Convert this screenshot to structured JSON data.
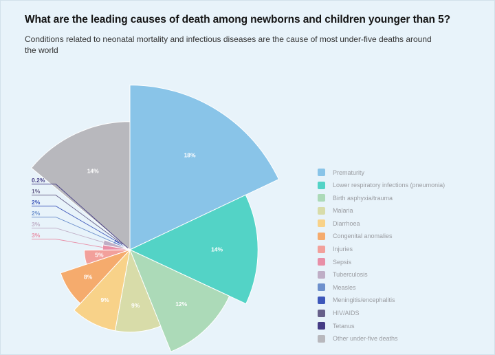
{
  "header": {
    "title": "What are the leading causes of death among newborns and children younger than 5?",
    "subtitle": "Conditions related to neonatal mortality and infectious diseases are the cause of most under-five deaths around the world"
  },
  "chart_data": {
    "type": "pie",
    "variant": "polar-area-rose",
    "unit": "%",
    "title": "What are the leading causes of death among newborns and children younger than 5?",
    "legend_position": "right",
    "categories": [
      "Prematurity",
      "Lower respiratory infections (pneumonia)",
      "Birth asphyxia/trauma",
      "Malaria",
      "Diarrhoea",
      "Congenital anomalies",
      "Injuries",
      "Sepsis",
      "Tuberculosis",
      "Measles",
      "Meningitis/encephalitis",
      "HIV/AIDS",
      "Tetanus",
      "Other under-five deaths"
    ],
    "values": [
      18,
      14,
      12,
      9,
      9,
      8,
      5,
      3,
      3,
      2,
      2,
      1,
      0.2,
      14
    ],
    "labels": [
      "18%",
      "14%",
      "12%",
      "9%",
      "9%",
      "8%",
      "5%",
      "3%",
      "3%",
      "2%",
      "2%",
      "1%",
      "0.2%",
      "14%"
    ],
    "colors": [
      "#89C4E8",
      "#53D3C6",
      "#ACDAB8",
      "#D8DCA9",
      "#F8D289",
      "#F5AB6D",
      "#F2A09B",
      "#E88FA7",
      "#BFAEC6",
      "#6D90CC",
      "#3D57BA",
      "#67608A",
      "#453C85",
      "#B8B8BD"
    ],
    "inside_label_min_value": 5,
    "start_angle_deg": 0,
    "direction": "clockwise"
  },
  "style": {
    "background": "#E8F3FA",
    "title_color": "#141414",
    "subtitle_color": "#333333",
    "legend_text_color": "#9A9CA1",
    "slice_label_color": "#FFFFFF"
  }
}
